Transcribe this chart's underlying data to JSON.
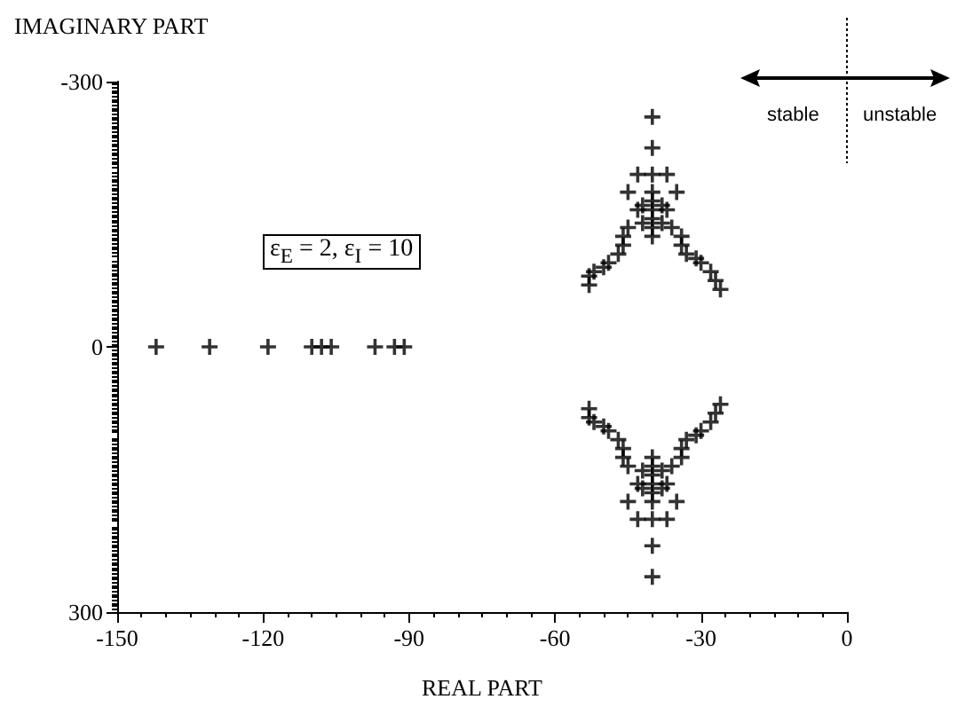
{
  "chart_data": {
    "type": "scatter",
    "xlabel": "REAL PART",
    "ylabel": "IMAGINARY PART",
    "annotations": [
      "ε$_{E}$ = 2, ε$_{I}$ = 10",
      "stable",
      "unstable"
    ],
    "xlim": [
      -150,
      0
    ],
    "xticks": [
      -150,
      -120,
      -90,
      -60,
      -30,
      0
    ],
    "ylim": [
      300,
      -300
    ],
    "yticks": [
      -300,
      0,
      300
    ],
    "grid": false,
    "marker": "cross",
    "color": "#000000",
    "x": [
      -142,
      -131,
      -119,
      -110,
      -108,
      -106,
      -97,
      -93,
      -91,
      -40,
      -40,
      -43,
      -40,
      -37,
      -45,
      -40,
      -35,
      -43,
      -37,
      -40,
      -40,
      -40,
      -40,
      -40,
      -42,
      -38,
      -42,
      -38,
      -45,
      -46,
      -46,
      -47,
      -49,
      -50,
      -52,
      -53,
      -53,
      -36,
      -34,
      -34,
      -33,
      -31,
      -30,
      -28,
      -27,
      -26,
      -40,
      -40,
      -43,
      -40,
      -37,
      -45,
      -40,
      -35,
      -43,
      -37,
      -40,
      -40,
      -40,
      -40,
      -40,
      -42,
      -38,
      -42,
      -38,
      -45,
      -46,
      -46,
      -47,
      -49,
      -50,
      -52,
      -53,
      -53,
      -36,
      -34,
      -34,
      -33,
      -31,
      -30,
      -28,
      -27,
      -26
    ],
    "values": [
      0,
      0,
      0,
      0,
      0,
      0,
      0,
      0,
      0,
      -260,
      -225,
      -195,
      -195,
      -195,
      -175,
      -175,
      -175,
      -155,
      -155,
      -165,
      -155,
      -145,
      -135,
      -125,
      -160,
      -160,
      -140,
      -140,
      -135,
      -125,
      -115,
      -105,
      -95,
      -90,
      -85,
      -80,
      -70,
      -135,
      -125,
      -115,
      -105,
      -100,
      -95,
      -85,
      -75,
      -65,
      260,
      225,
      195,
      195,
      195,
      175,
      175,
      175,
      155,
      155,
      165,
      155,
      145,
      135,
      125,
      160,
      160,
      140,
      140,
      135,
      125,
      115,
      105,
      95,
      90,
      85,
      80,
      70,
      135,
      125,
      115,
      105,
      100,
      95,
      85,
      75,
      65
    ]
  }
}
